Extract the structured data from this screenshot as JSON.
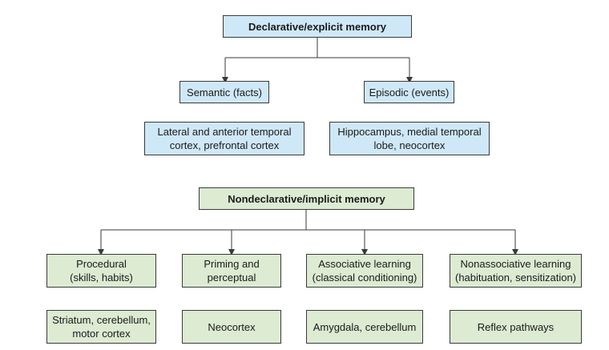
{
  "declarative": {
    "title": "Declarative/explicit memory",
    "branches": [
      {
        "label": "Semantic (facts)",
        "region": "Lateral and anterior temporal\ncortex, prefrontal cortex"
      },
      {
        "label": "Episodic (events)",
        "region": "Hippocampus, medial temporal\nlobe, neocortex"
      }
    ]
  },
  "nondeclarative": {
    "title": "Nondeclarative/implicit memory",
    "branches": [
      {
        "label": "Procedural\n(skills, habits)",
        "region": "Striatum, cerebellum,\nmotor cortex"
      },
      {
        "label": "Priming and\nperceptual",
        "region": "Neocortex"
      },
      {
        "label": "Associative learning\n(classical conditioning)",
        "region": "Amygdala, cerebellum"
      },
      {
        "label": "Nonassociative learning\n(habituation, sensitization)",
        "region": "Reflex pathways"
      }
    ]
  },
  "colors": {
    "declarative_fill": "#cfe8f7",
    "nondeclarative_fill": "#dcebd2",
    "line": "#3a3a3a"
  }
}
